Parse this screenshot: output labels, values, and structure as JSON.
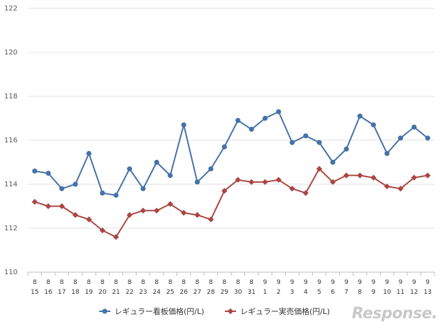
{
  "chart_data": {
    "type": "line",
    "title": "",
    "xlabel": "",
    "ylabel": "",
    "ylim": [
      110,
      122
    ],
    "yticks": [
      "110",
      "112",
      "114",
      "116",
      "118",
      "120",
      "122"
    ],
    "categories": [
      {
        "month": "8",
        "day": "15"
      },
      {
        "month": "8",
        "day": "16"
      },
      {
        "month": "8",
        "day": "17"
      },
      {
        "month": "8",
        "day": "18"
      },
      {
        "month": "8",
        "day": "19"
      },
      {
        "month": "8",
        "day": "20"
      },
      {
        "month": "8",
        "day": "21"
      },
      {
        "month": "8",
        "day": "22"
      },
      {
        "month": "8",
        "day": "23"
      },
      {
        "month": "8",
        "day": "24"
      },
      {
        "month": "8",
        "day": "25"
      },
      {
        "month": "8",
        "day": "26"
      },
      {
        "month": "8",
        "day": "27"
      },
      {
        "month": "8",
        "day": "28"
      },
      {
        "month": "8",
        "day": "29"
      },
      {
        "month": "8",
        "day": "30"
      },
      {
        "month": "8",
        "day": "31"
      },
      {
        "month": "9",
        "day": "1"
      },
      {
        "month": "9",
        "day": "2"
      },
      {
        "month": "9",
        "day": "3"
      },
      {
        "month": "9",
        "day": "4"
      },
      {
        "month": "9",
        "day": "5"
      },
      {
        "month": "9",
        "day": "6"
      },
      {
        "month": "9",
        "day": "7"
      },
      {
        "month": "9",
        "day": "8"
      },
      {
        "month": "9",
        "day": "9"
      },
      {
        "month": "9",
        "day": "10"
      },
      {
        "month": "9",
        "day": "11"
      },
      {
        "month": "9",
        "day": "12"
      },
      {
        "month": "9",
        "day": "13"
      }
    ],
    "series": [
      {
        "name": "レギュラー看板価格(円/L)",
        "color": "#4572a7",
        "marker": "circle",
        "values": [
          114.6,
          114.5,
          113.8,
          114.0,
          115.4,
          113.6,
          113.5,
          114.7,
          113.8,
          115.0,
          114.4,
          116.7,
          114.1,
          114.7,
          115.7,
          116.9,
          116.5,
          117.0,
          117.3,
          115.9,
          116.2,
          115.9,
          115.0,
          115.6,
          117.1,
          116.7,
          115.4,
          116.1,
          116.6,
          116.1
        ]
      },
      {
        "name": "レギュラー実売価格(円/L)",
        "color": "#aa4643",
        "marker": "diamond",
        "values": [
          113.2,
          113.0,
          113.0,
          112.6,
          112.4,
          111.9,
          111.6,
          112.6,
          112.8,
          112.8,
          113.1,
          112.7,
          112.6,
          112.4,
          113.7,
          114.2,
          114.1,
          114.1,
          114.2,
          113.8,
          113.6,
          114.7,
          114.1,
          114.4,
          114.4,
          114.3,
          113.9,
          113.8,
          114.3,
          114.4
        ]
      }
    ],
    "legend_position": "bottom-center"
  },
  "watermark": "Response."
}
